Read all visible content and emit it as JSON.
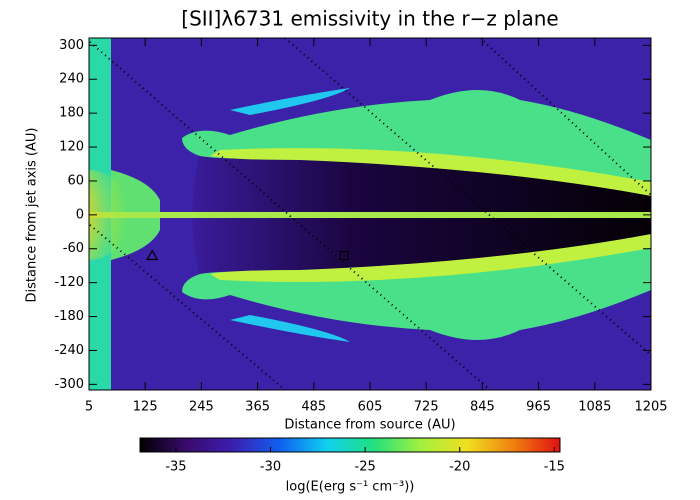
{
  "chart_data": {
    "type": "heatmap",
    "title": "[SII]λ6731 emissivity in the r−z plane",
    "x_label": "Distance from source (AU)",
    "y_label": "Distance from jet axis (AU)",
    "xlim": [
      5,
      1205
    ],
    "xticks": [
      5,
      125,
      245,
      365,
      485,
      605,
      725,
      845,
      965,
      1085,
      1205
    ],
    "ylim": [
      -310,
      313
    ],
    "yticks": [
      -300,
      -240,
      -180,
      -120,
      -60,
      0,
      60,
      120,
      180,
      240,
      300
    ],
    "markers": [
      {
        "x": 140,
        "y": -72,
        "shape": "triangle"
      },
      {
        "x": 550,
        "y": -72,
        "shape": "square"
      }
    ],
    "colorbar": {
      "label": "log(E(erg s⁻¹ cm⁻³))",
      "lim": [
        -36.9,
        -14.7
      ],
      "ticks": [
        -35,
        -30,
        -25,
        -20,
        -15
      ],
      "colormap": [
        "#000000",
        "#3a0a6e",
        "#3b1fb0",
        "#1060f0",
        "#10d0f0",
        "#20e080",
        "#a0f040",
        "#f0e020",
        "#f08010",
        "#e01010"
      ]
    }
  }
}
